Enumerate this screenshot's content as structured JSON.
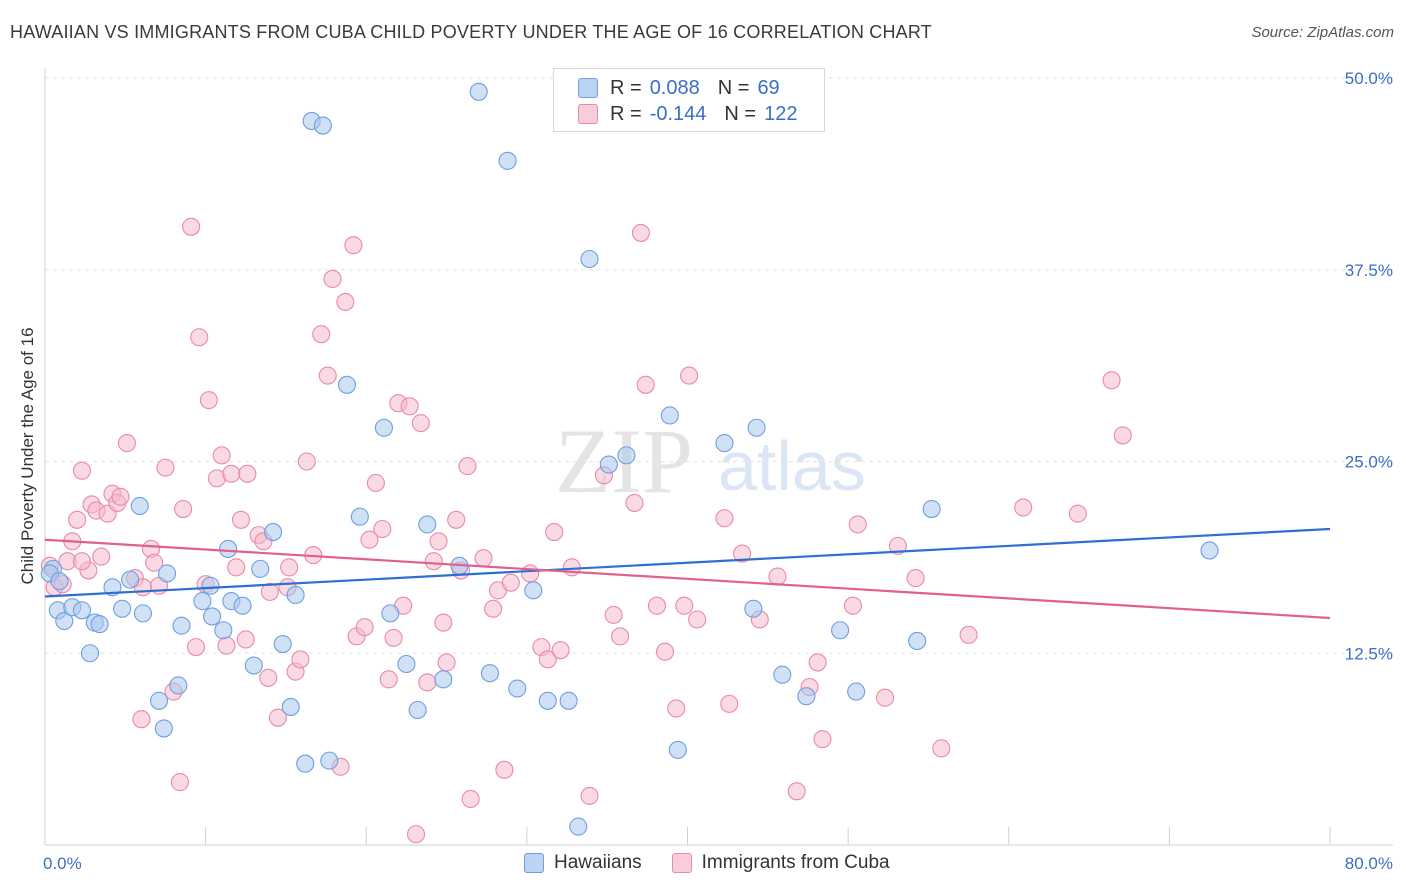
{
  "title": "HAWAIIAN VS IMMIGRANTS FROM CUBA CHILD POVERTY UNDER THE AGE OF 16 CORRELATION CHART",
  "source": "Source: ZipAtlas.com",
  "watermark": {
    "zip": "ZIP",
    "atlas": "atlas"
  },
  "colors": {
    "blue_fill": "#a9c8ef",
    "blue_stroke": "#6f9fe0",
    "blue_line": "#2e6fd0",
    "pink_fill": "#f4b9cc",
    "pink_stroke": "#ea8aa8",
    "pink_line": "#e0608e",
    "tick_text": "#3b6fc4",
    "grid": "#e3e3e3"
  },
  "legend": {
    "rows": [
      {
        "r_label": "R =",
        "r_value": "0.088",
        "n_label": "N =",
        "n_value": "69"
      },
      {
        "r_label": "R =",
        "r_value": "-0.144",
        "n_label": "N =",
        "n_value": "122"
      }
    ]
  },
  "bottom_legend": {
    "series_0": "Hawaiians",
    "series_1": "Immigrants from Cuba"
  },
  "chart_data": {
    "type": "scatter",
    "title": "HAWAIIAN VS IMMIGRANTS FROM CUBA CHILD POVERTY UNDER THE AGE OF 16 CORRELATION CHART",
    "xlabel": "",
    "ylabel": "Child Poverty Under the Age of 16",
    "xlim": [
      0,
      80
    ],
    "ylim": [
      0,
      50
    ],
    "x_tick_labels": [
      "0.0%",
      "80.0%"
    ],
    "y_ticks": [
      12.5,
      25.0,
      37.5,
      50.0
    ],
    "y_tick_labels": [
      "12.5%",
      "25.0%",
      "37.5%",
      "50.0%"
    ],
    "grid": true,
    "legend_position": "top-center",
    "series": [
      {
        "name": "Hawaiians",
        "r": 0.088,
        "n": 69,
        "trend": [
          [
            0,
            16.2
          ],
          [
            80,
            20.6
          ]
        ],
        "points": [
          [
            0.5,
            18.0
          ],
          [
            0.8,
            15.3
          ],
          [
            1.2,
            14.6
          ],
          [
            1.7,
            15.5
          ],
          [
            2.3,
            15.3
          ],
          [
            3.1,
            14.5
          ],
          [
            3.4,
            14.4
          ],
          [
            2.8,
            12.5
          ],
          [
            4.2,
            16.8
          ],
          [
            4.8,
            15.4
          ],
          [
            5.3,
            17.3
          ],
          [
            6.1,
            15.1
          ],
          [
            5.9,
            22.1
          ],
          [
            7.6,
            17.7
          ],
          [
            8.5,
            14.3
          ],
          [
            7.1,
            9.4
          ],
          [
            7.4,
            7.6
          ],
          [
            8.3,
            10.4
          ],
          [
            9.8,
            15.9
          ],
          [
            10.3,
            16.9
          ],
          [
            10.4,
            14.9
          ],
          [
            11.1,
            14.0
          ],
          [
            11.4,
            19.3
          ],
          [
            11.6,
            15.9
          ],
          [
            12.3,
            15.6
          ],
          [
            13.0,
            11.7
          ],
          [
            13.4,
            18.0
          ],
          [
            14.2,
            20.4
          ],
          [
            14.8,
            13.1
          ],
          [
            15.3,
            9.0
          ],
          [
            15.6,
            16.3
          ],
          [
            16.2,
            5.3
          ],
          [
            16.6,
            47.2
          ],
          [
            17.3,
            46.9
          ],
          [
            17.7,
            5.5
          ],
          [
            18.8,
            30.0
          ],
          [
            19.6,
            21.4
          ],
          [
            21.1,
            27.2
          ],
          [
            21.5,
            15.1
          ],
          [
            22.5,
            11.8
          ],
          [
            23.2,
            8.8
          ],
          [
            23.8,
            20.9
          ],
          [
            24.8,
            10.8
          ],
          [
            25.8,
            18.2
          ],
          [
            27.0,
            49.1
          ],
          [
            27.7,
            11.2
          ],
          [
            28.8,
            44.6
          ],
          [
            29.4,
            10.2
          ],
          [
            30.4,
            16.6
          ],
          [
            31.3,
            9.4
          ],
          [
            32.6,
            9.4
          ],
          [
            33.2,
            1.2
          ],
          [
            33.9,
            38.2
          ],
          [
            35.1,
            24.8
          ],
          [
            36.2,
            25.4
          ],
          [
            38.9,
            28.0
          ],
          [
            39.4,
            6.2
          ],
          [
            42.3,
            26.2
          ],
          [
            44.3,
            27.2
          ],
          [
            44.1,
            15.4
          ],
          [
            45.9,
            11.1
          ],
          [
            47.4,
            9.7
          ],
          [
            49.5,
            14.0
          ],
          [
            50.5,
            10.0
          ],
          [
            54.3,
            13.3
          ],
          [
            55.2,
            21.9
          ],
          [
            72.5,
            19.2
          ],
          [
            0.3,
            17.7
          ],
          [
            0.9,
            17.2
          ]
        ]
      },
      {
        "name": "Immigrants from Cuba",
        "r": -0.144,
        "n": 122,
        "trend": [
          [
            0,
            19.9
          ],
          [
            80,
            14.8
          ]
        ],
        "points": [
          [
            0.3,
            18.2
          ],
          [
            0.6,
            16.8
          ],
          [
            1.1,
            17.0
          ],
          [
            1.4,
            18.5
          ],
          [
            1.7,
            19.8
          ],
          [
            2.0,
            21.2
          ],
          [
            2.3,
            24.4
          ],
          [
            2.7,
            17.9
          ],
          [
            2.9,
            22.2
          ],
          [
            3.2,
            21.8
          ],
          [
            3.5,
            18.8
          ],
          [
            3.9,
            21.6
          ],
          [
            4.2,
            22.9
          ],
          [
            4.5,
            22.3
          ],
          [
            4.7,
            22.7
          ],
          [
            5.1,
            26.2
          ],
          [
            5.6,
            17.4
          ],
          [
            6.1,
            16.8
          ],
          [
            6.0,
            8.2
          ],
          [
            6.6,
            19.3
          ],
          [
            6.8,
            18.4
          ],
          [
            7.1,
            16.9
          ],
          [
            7.5,
            24.6
          ],
          [
            8.0,
            10.0
          ],
          [
            8.4,
            4.1
          ],
          [
            8.6,
            21.9
          ],
          [
            9.1,
            40.3
          ],
          [
            9.4,
            12.9
          ],
          [
            9.6,
            33.1
          ],
          [
            10.0,
            17.0
          ],
          [
            10.2,
            29.0
          ],
          [
            10.7,
            23.9
          ],
          [
            11.0,
            25.4
          ],
          [
            11.3,
            13.0
          ],
          [
            11.6,
            24.2
          ],
          [
            11.9,
            18.1
          ],
          [
            12.2,
            21.2
          ],
          [
            12.5,
            13.4
          ],
          [
            12.6,
            24.2
          ],
          [
            13.3,
            20.2
          ],
          [
            13.6,
            19.8
          ],
          [
            13.9,
            10.9
          ],
          [
            14.0,
            16.5
          ],
          [
            14.5,
            8.3
          ],
          [
            15.1,
            16.8
          ],
          [
            15.6,
            11.3
          ],
          [
            15.9,
            12.1
          ],
          [
            16.3,
            25.0
          ],
          [
            16.7,
            18.9
          ],
          [
            17.2,
            33.3
          ],
          [
            17.6,
            30.6
          ],
          [
            17.9,
            36.9
          ],
          [
            18.4,
            5.1
          ],
          [
            18.7,
            35.4
          ],
          [
            19.2,
            39.1
          ],
          [
            19.4,
            13.6
          ],
          [
            19.9,
            14.2
          ],
          [
            20.2,
            19.9
          ],
          [
            20.6,
            23.6
          ],
          [
            21.0,
            20.6
          ],
          [
            21.4,
            10.8
          ],
          [
            21.7,
            13.5
          ],
          [
            22.0,
            28.8
          ],
          [
            22.3,
            15.6
          ],
          [
            22.7,
            28.6
          ],
          [
            23.1,
            0.7
          ],
          [
            23.4,
            27.5
          ],
          [
            23.8,
            10.6
          ],
          [
            24.2,
            18.5
          ],
          [
            24.5,
            19.8
          ],
          [
            24.8,
            14.5
          ],
          [
            25.0,
            11.9
          ],
          [
            25.6,
            21.2
          ],
          [
            25.9,
            17.9
          ],
          [
            26.3,
            24.7
          ],
          [
            26.5,
            3.0
          ],
          [
            27.3,
            18.7
          ],
          [
            27.9,
            15.4
          ],
          [
            28.2,
            16.6
          ],
          [
            28.6,
            4.9
          ],
          [
            29.0,
            17.1
          ],
          [
            30.2,
            17.7
          ],
          [
            30.9,
            12.9
          ],
          [
            31.3,
            12.1
          ],
          [
            31.7,
            20.4
          ],
          [
            32.1,
            12.7
          ],
          [
            32.8,
            18.1
          ],
          [
            33.9,
            3.2
          ],
          [
            34.8,
            24.1
          ],
          [
            35.4,
            15.0
          ],
          [
            35.8,
            13.6
          ],
          [
            36.7,
            22.3
          ],
          [
            37.1,
            39.9
          ],
          [
            37.4,
            30.0
          ],
          [
            38.1,
            15.6
          ],
          [
            38.6,
            12.6
          ],
          [
            39.3,
            8.9
          ],
          [
            39.8,
            15.6
          ],
          [
            40.1,
            30.6
          ],
          [
            40.6,
            14.7
          ],
          [
            42.3,
            21.3
          ],
          [
            42.6,
            9.2
          ],
          [
            43.4,
            19.0
          ],
          [
            44.5,
            14.7
          ],
          [
            45.6,
            17.5
          ],
          [
            46.8,
            3.5
          ],
          [
            47.6,
            10.3
          ],
          [
            48.1,
            11.9
          ],
          [
            48.4,
            6.9
          ],
          [
            50.3,
            15.6
          ],
          [
            50.6,
            20.9
          ],
          [
            52.3,
            9.6
          ],
          [
            53.1,
            19.5
          ],
          [
            54.2,
            17.4
          ],
          [
            55.8,
            6.3
          ],
          [
            57.5,
            13.7
          ],
          [
            60.9,
            22.0
          ],
          [
            64.3,
            21.6
          ],
          [
            66.4,
            30.3
          ],
          [
            67.1,
            26.7
          ],
          [
            2.3,
            18.5
          ],
          [
            15.2,
            18.1
          ]
        ]
      }
    ]
  }
}
